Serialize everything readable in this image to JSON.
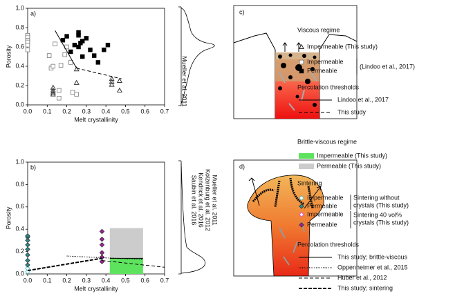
{
  "chart_data": [
    {
      "type": "scatter",
      "panel_label": "a)",
      "xlabel": "Melt crystallinity",
      "ylabel": "Porosity",
      "xlim": [
        0,
        0.7
      ],
      "ylim": [
        0,
        1
      ],
      "xticks": [
        {
          "value": 0,
          "label": "0.0"
        },
        0.1,
        0.2,
        0.3,
        0.4,
        0.5,
        0.6,
        0.7
      ],
      "yticks": [
        {
          "value": 0,
          "label": "0.0"
        },
        0.2,
        0.4,
        0.6,
        0.8,
        {
          "value": 1,
          "label": "1.0"
        }
      ],
      "legend_headings": [
        "Viscous regime",
        "Percolation thresholds"
      ],
      "legend_notes": [
        [
          "(Lindoo et al., 2017)"
        ]
      ],
      "series": [
        {
          "name": "Impermeable (This study)",
          "marker": "triangle-open",
          "color": "#333333",
          "x": [
            0.13,
            0.13,
            0.13,
            0.13,
            0.25,
            0.25,
            0.43,
            0.43,
            0.43,
            0.47,
            0.47
          ],
          "values": [
            0.18,
            0.15,
            0.13,
            0.11,
            0.37,
            0.23,
            0.27,
            0.24,
            0.21,
            0.25,
            0.15
          ]
        },
        {
          "name": "Impermeable",
          "marker": "square-open",
          "color": "#555555",
          "x": [
            0,
            0,
            0,
            0,
            0,
            0,
            0.11,
            0.12,
            0.13,
            0.14,
            0.17,
            0.19,
            0.16,
            0.16,
            0.2,
            0.22,
            0.23,
            0.25
          ],
          "values": [
            0.72,
            0.7,
            0.67,
            0.65,
            0.62,
            0.57,
            0.51,
            0.38,
            0.4,
            0.63,
            0.41,
            0.52,
            0.15,
            0.07,
            0.6,
            0.44,
            0.13,
            0.11
          ]
        },
        {
          "name": "Permeable",
          "marker": "square-filled",
          "color": "#000000",
          "x": [
            0.18,
            0.2,
            0.24,
            0.26,
            0.26,
            0.27,
            0.28,
            0.3,
            0.26,
            0.22,
            0.28,
            0.32,
            0.34,
            0.36,
            0.39,
            0.41
          ],
          "values": [
            0.67,
            0.71,
            0.62,
            0.75,
            0.72,
            0.64,
            0.66,
            0.69,
            0.6,
            0.55,
            0.5,
            0.57,
            0.51,
            0.44,
            0.57,
            0.62
          ]
        },
        {
          "name": "Lindoo et al., 2017",
          "marker": "line-solid",
          "color": "#000000",
          "x": [
            0.14,
            0.25
          ],
          "values": [
            0.77,
            0.38
          ]
        },
        {
          "name": "This study",
          "marker": "line-dashed",
          "color": "#000000",
          "x": [
            0.25,
            0.48
          ],
          "values": [
            0.38,
            0.27
          ]
        }
      ]
    },
    {
      "type": "scatter",
      "panel_label": "b)",
      "xlabel": "Melt crystallinity",
      "ylabel": "Porosity",
      "xlim": [
        0,
        0.7
      ],
      "ylim": [
        0,
        1
      ],
      "xticks": [
        {
          "value": 0,
          "label": "0.0"
        },
        0.1,
        0.2,
        0.3,
        0.4,
        0.5,
        0.6,
        0.7
      ],
      "yticks": [
        {
          "value": 0,
          "label": "0.0"
        },
        0.2,
        0.4,
        0.6,
        0.8,
        {
          "value": 1,
          "label": "1.0"
        }
      ],
      "legend_headings": [
        "Brittle-viscous regime",
        "Sintering",
        "Percolation thresholds"
      ],
      "legend_notes": [
        [
          "Sintering without",
          "crystals (This study)"
        ],
        [
          "Sintering 40 vol%",
          "crystals (This study)"
        ]
      ],
      "series": [
        {
          "name": "Impermeable (This study)",
          "marker": "region",
          "color": "#5ee35e",
          "x": [
            0.42,
            0.59
          ],
          "values": [
            0,
            0.14
          ]
        },
        {
          "name": "Permeable (This study)",
          "marker": "region",
          "color": "#cccccc",
          "x": [
            0.42,
            0.59
          ],
          "values": [
            0.14,
            0.41
          ]
        },
        {
          "name": "Impermeable",
          "marker": "diamond-open",
          "color": "#3cc0c8",
          "x": [
            0,
            0
          ],
          "values": [
            0.02,
            0.05
          ]
        },
        {
          "name": "Permeable",
          "marker": "diamond-filled",
          "color": "#2a8c8c",
          "x": [
            0,
            0,
            0,
            0,
            0,
            0,
            0,
            0
          ],
          "values": [
            0.08,
            0.12,
            0.17,
            0.22,
            0.26,
            0.3,
            0.33,
            0.34
          ]
        },
        {
          "name": "Impermeable",
          "marker": "diamond-open",
          "color": "#e040e0",
          "x": [],
          "values": []
        },
        {
          "name": "Permeable",
          "marker": "diamond-filled",
          "color": "#a0209c",
          "x": [
            0.38,
            0.38,
            0.38,
            0.38,
            0.38,
            0.38
          ],
          "values": [
            0.11,
            0.15,
            0.19,
            0.26,
            0.31,
            0.38
          ]
        },
        {
          "name": "This study; brittle-viscous",
          "marker": "line-solid",
          "color": "#000000",
          "x": [
            0.42,
            0.59
          ],
          "values": [
            0.14,
            0.14
          ]
        },
        {
          "name": "Oppenheimer et al., 2015",
          "marker": "line-dotted",
          "color": "#000000",
          "x": [
            0.2,
            0.38,
            0.59
          ],
          "values": [
            0.16,
            0.145,
            0.13
          ]
        },
        {
          "name": "Huber et al., 2012",
          "marker": "line-dashed",
          "color": "#000000",
          "x": [
            0.38,
            0.7
          ],
          "values": [
            0.12,
            0.06
          ]
        },
        {
          "name": "This study; sintering",
          "marker": "line-bold-dashed",
          "color": "#000000",
          "x": [
            0,
            0.38
          ],
          "values": [
            0.03,
            0.14
          ]
        }
      ]
    }
  ],
  "distributions": {
    "top": [
      "Mueller et al. 2011"
    ],
    "bottom": [
      "Mueller et al. 2011",
      "Kolzenburg et al. 2012",
      "Kendrick et al. 2016",
      "Saubin et al. 2016"
    ]
  },
  "illustrations": {
    "c": "c)",
    "d": "d)"
  }
}
